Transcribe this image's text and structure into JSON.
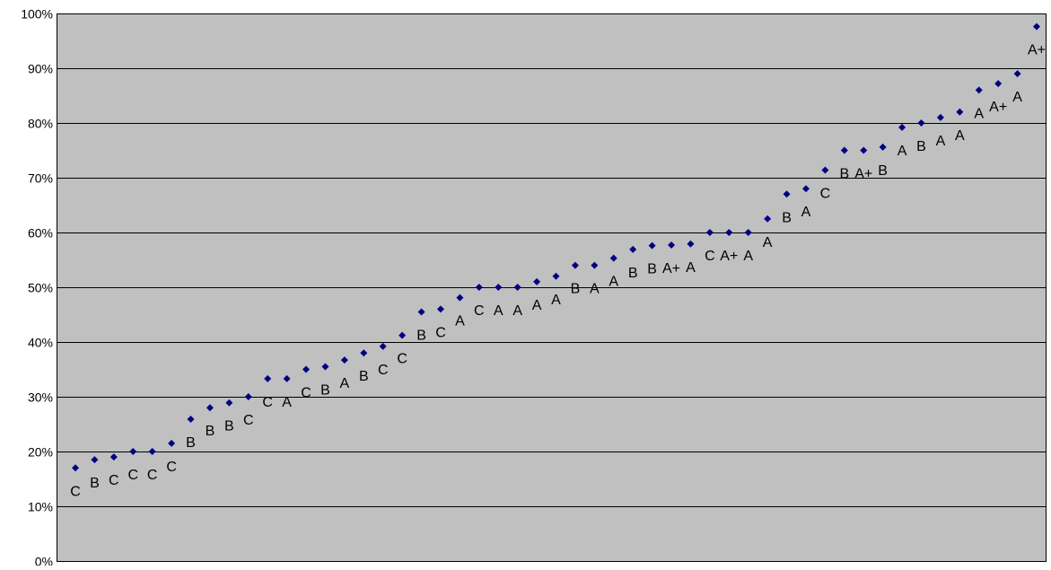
{
  "colors": {
    "plot_background": "#c0c0c0",
    "gridline": "#000000",
    "marker": "#000080",
    "page_background": "#ffffff"
  },
  "chart_data": {
    "type": "scatter",
    "title": "",
    "xlabel": "",
    "ylabel": "",
    "ylim": [
      0,
      1
    ],
    "yticks": [
      "0%",
      "10%",
      "20%",
      "30%",
      "40%",
      "50%",
      "60%",
      "70%",
      "80%",
      "90%",
      "100%"
    ],
    "grid": "horizontal",
    "legend": "none",
    "marker_shape": "diamond",
    "series": [
      {
        "values": [
          0.17,
          0.185,
          0.19,
          0.2,
          0.2,
          0.215,
          0.259,
          0.28,
          0.289,
          0.3,
          0.333,
          0.333,
          0.35,
          0.355,
          0.367,
          0.38,
          0.392,
          0.412,
          0.455,
          0.46,
          0.481,
          0.5,
          0.5,
          0.5,
          0.51,
          0.52,
          0.54,
          0.54,
          0.553,
          0.569,
          0.576,
          0.577,
          0.579,
          0.6,
          0.6,
          0.6,
          0.625,
          0.67,
          0.68,
          0.714,
          0.75,
          0.75,
          0.756,
          0.792,
          0.8,
          0.81,
          0.82,
          0.86,
          0.872,
          0.89,
          0.976
        ],
        "labels": [
          "C",
          "B",
          "C",
          "C",
          "C",
          "C",
          "B",
          "B",
          "B",
          "C",
          "C",
          "A",
          "C",
          "B",
          "A",
          "B",
          "C",
          "C",
          "B",
          "C",
          "A",
          "C",
          "A",
          "A",
          "A",
          "A",
          "B",
          "A",
          "A",
          "B",
          "B",
          "A+",
          "A",
          "C",
          "A+",
          "A",
          "A",
          "B",
          "A",
          "C",
          "B",
          "A+",
          "B",
          "A",
          "B",
          "A",
          "A",
          "A",
          "A+",
          "A",
          "A+"
        ]
      }
    ]
  }
}
